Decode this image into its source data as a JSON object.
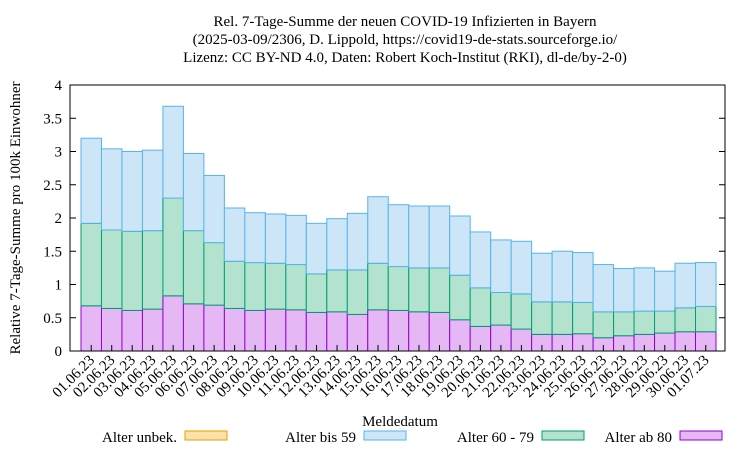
{
  "chart_data": {
    "type": "stacked-bar",
    "title": [
      "Rel. 7-Tage-Summe der neuen COVID-19 Infizierten in Bayern",
      "(2025-03-09/2306, D. Lippold, https://covid19-de-stats.sourceforge.io/",
      "Lizenz: CC BY-ND 4.0, Daten: Robert Koch-Institut (RKI), dl-de/by-2-0)"
    ],
    "x_label": "Meldedatum",
    "y_label": "Relative 7-Tage-Summe pro 100k Einwohner",
    "categories": [
      "01.06.23",
      "02.06.23",
      "03.06.23",
      "04.06.23",
      "05.06.23",
      "06.06.23",
      "07.06.23",
      "08.06.23",
      "09.06.23",
      "10.06.23",
      "11.06.23",
      "12.06.23",
      "13.06.23",
      "14.06.23",
      "15.06.23",
      "16.06.23",
      "17.06.23",
      "18.06.23",
      "19.06.23",
      "20.06.23",
      "21.06.23",
      "22.06.23",
      "23.06.23",
      "24.06.23",
      "25.06.23",
      "26.06.23",
      "27.06.23",
      "28.06.23",
      "29.06.23",
      "30.06.23",
      "01.07.23"
    ],
    "series": [
      {
        "name": "Alter unbek.",
        "color": "#fde1a8",
        "edge_color": "#e69f00",
        "values": [
          0,
          0,
          0,
          0,
          0,
          0,
          0,
          0,
          0,
          0,
          0,
          0,
          0,
          0,
          0,
          0,
          0,
          0,
          0,
          0,
          0,
          0,
          0,
          0,
          0,
          0,
          0,
          0,
          0,
          0,
          0
        ]
      },
      {
        "name": "Alter bis 59",
        "color": "#cce6f8",
        "edge_color": "#56b4e9",
        "values": [
          1.28,
          1.22,
          1.2,
          1.21,
          1.38,
          1.16,
          1.01,
          0.8,
          0.75,
          0.74,
          0.74,
          0.76,
          0.77,
          0.85,
          1.0,
          0.93,
          0.93,
          0.93,
          0.89,
          0.84,
          0.79,
          0.79,
          0.73,
          0.76,
          0.75,
          0.71,
          0.65,
          0.65,
          0.6,
          0.67,
          0.66
        ]
      },
      {
        "name": "Alter 60 - 79",
        "color": "#b3e3cf",
        "edge_color": "#009e73",
        "values": [
          1.24,
          1.18,
          1.19,
          1.18,
          1.47,
          1.1,
          0.94,
          0.71,
          0.72,
          0.69,
          0.68,
          0.58,
          0.63,
          0.67,
          0.7,
          0.66,
          0.66,
          0.67,
          0.67,
          0.58,
          0.49,
          0.53,
          0.49,
          0.49,
          0.47,
          0.39,
          0.36,
          0.35,
          0.33,
          0.36,
          0.38
        ]
      },
      {
        "name": "Alter ab 80",
        "color": "#e5b8f5",
        "edge_color": "#9400d3",
        "values": [
          0.68,
          0.64,
          0.61,
          0.63,
          0.83,
          0.71,
          0.69,
          0.64,
          0.61,
          0.63,
          0.62,
          0.58,
          0.59,
          0.55,
          0.62,
          0.61,
          0.59,
          0.58,
          0.47,
          0.37,
          0.39,
          0.33,
          0.25,
          0.25,
          0.26,
          0.2,
          0.23,
          0.25,
          0.27,
          0.29,
          0.29
        ]
      }
    ],
    "ylim": [
      0,
      4
    ],
    "yticks": [
      0,
      0.5,
      1,
      1.5,
      2,
      2.5,
      3,
      3.5,
      4
    ],
    "legend": "bottom"
  }
}
